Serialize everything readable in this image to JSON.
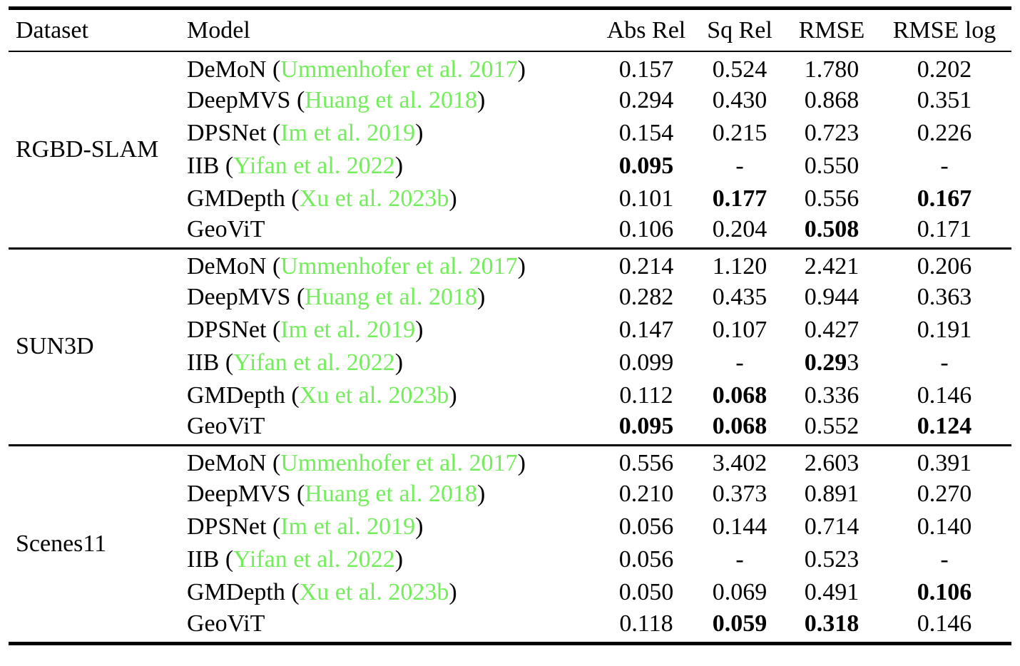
{
  "colors": {
    "citation_green": "#72ee5a",
    "text": "#000000",
    "background": "#ffffff"
  },
  "table": {
    "columns": [
      "Dataset",
      "Model",
      "Abs Rel",
      "Sq Rel",
      "RMSE",
      "RMSE log"
    ],
    "citation_prefix": " (",
    "citation_suffix": ")",
    "groups": [
      {
        "dataset": "RGBD-SLAM",
        "rows": [
          {
            "model": "DeMoN",
            "citation": "Ummenhofer et al. 2017",
            "values": [
              {
                "parts": [
                  {
                    "t": "0.157",
                    "b": false
                  }
                ]
              },
              {
                "parts": [
                  {
                    "t": "0.524",
                    "b": false
                  }
                ]
              },
              {
                "parts": [
                  {
                    "t": "1.780",
                    "b": false
                  }
                ]
              },
              {
                "parts": [
                  {
                    "t": "0.202",
                    "b": false
                  }
                ]
              }
            ]
          },
          {
            "model": "DeepMVS",
            "citation": "Huang et al. 2018",
            "values": [
              {
                "parts": [
                  {
                    "t": "0.294",
                    "b": false
                  }
                ]
              },
              {
                "parts": [
                  {
                    "t": "0.430",
                    "b": false
                  }
                ]
              },
              {
                "parts": [
                  {
                    "t": "0.868",
                    "b": false
                  }
                ]
              },
              {
                "parts": [
                  {
                    "t": "0.351",
                    "b": false
                  }
                ]
              }
            ]
          },
          {
            "model": "DPSNet",
            "citation": "Im et al. 2019",
            "values": [
              {
                "parts": [
                  {
                    "t": "0.154",
                    "b": false
                  }
                ]
              },
              {
                "parts": [
                  {
                    "t": "0.215",
                    "b": false
                  }
                ]
              },
              {
                "parts": [
                  {
                    "t": "0.723",
                    "b": false
                  }
                ]
              },
              {
                "parts": [
                  {
                    "t": "0.226",
                    "b": false
                  }
                ]
              }
            ]
          },
          {
            "model": "IIB",
            "citation": "Yifan et al. 2022",
            "values": [
              {
                "parts": [
                  {
                    "t": "0.095",
                    "b": true
                  }
                ]
              },
              {
                "parts": [
                  {
                    "t": "-",
                    "b": false
                  }
                ]
              },
              {
                "parts": [
                  {
                    "t": "0.550",
                    "b": false
                  }
                ]
              },
              {
                "parts": [
                  {
                    "t": "-",
                    "b": false
                  }
                ]
              }
            ]
          },
          {
            "model": "GMDepth",
            "citation": "Xu et al. 2023b",
            "values": [
              {
                "parts": [
                  {
                    "t": "0.101",
                    "b": false
                  }
                ]
              },
              {
                "parts": [
                  {
                    "t": "0.177",
                    "b": true
                  }
                ]
              },
              {
                "parts": [
                  {
                    "t": "0.556",
                    "b": false
                  }
                ]
              },
              {
                "parts": [
                  {
                    "t": "0.167",
                    "b": true
                  }
                ]
              }
            ]
          },
          {
            "model": "GeoViT",
            "citation": null,
            "values": [
              {
                "parts": [
                  {
                    "t": "0.106",
                    "b": false
                  }
                ]
              },
              {
                "parts": [
                  {
                    "t": "0.204",
                    "b": false
                  }
                ]
              },
              {
                "parts": [
                  {
                    "t": "0.508",
                    "b": true
                  }
                ]
              },
              {
                "parts": [
                  {
                    "t": "0.171",
                    "b": false
                  }
                ]
              }
            ]
          }
        ]
      },
      {
        "dataset": "SUN3D",
        "rows": [
          {
            "model": "DeMoN",
            "citation": "Ummenhofer et al. 2017",
            "values": [
              {
                "parts": [
                  {
                    "t": "0.214",
                    "b": false
                  }
                ]
              },
              {
                "parts": [
                  {
                    "t": "1.120",
                    "b": false
                  }
                ]
              },
              {
                "parts": [
                  {
                    "t": "2.421",
                    "b": false
                  }
                ]
              },
              {
                "parts": [
                  {
                    "t": "0.206",
                    "b": false
                  }
                ]
              }
            ]
          },
          {
            "model": "DeepMVS",
            "citation": "Huang et al. 2018",
            "values": [
              {
                "parts": [
                  {
                    "t": "0.282",
                    "b": false
                  }
                ]
              },
              {
                "parts": [
                  {
                    "t": "0.435",
                    "b": false
                  }
                ]
              },
              {
                "parts": [
                  {
                    "t": "0.944",
                    "b": false
                  }
                ]
              },
              {
                "parts": [
                  {
                    "t": "0.363",
                    "b": false
                  }
                ]
              }
            ]
          },
          {
            "model": "DPSNet",
            "citation": "Im et al. 2019",
            "values": [
              {
                "parts": [
                  {
                    "t": "0.147",
                    "b": false
                  }
                ]
              },
              {
                "parts": [
                  {
                    "t": "0.107",
                    "b": false
                  }
                ]
              },
              {
                "parts": [
                  {
                    "t": "0.427",
                    "b": false
                  }
                ]
              },
              {
                "parts": [
                  {
                    "t": "0.191",
                    "b": false
                  }
                ]
              }
            ]
          },
          {
            "model": "IIB",
            "citation": "Yifan et al. 2022",
            "values": [
              {
                "parts": [
                  {
                    "t": "0.099",
                    "b": false
                  }
                ]
              },
              {
                "parts": [
                  {
                    "t": "-",
                    "b": false
                  }
                ]
              },
              {
                "parts": [
                  {
                    "t": "0.29",
                    "b": true
                  },
                  {
                    "t": "3",
                    "b": false
                  }
                ]
              },
              {
                "parts": [
                  {
                    "t": "-",
                    "b": false
                  }
                ]
              }
            ]
          },
          {
            "model": "GMDepth",
            "citation": "Xu et al. 2023b",
            "values": [
              {
                "parts": [
                  {
                    "t": "0.112",
                    "b": false
                  }
                ]
              },
              {
                "parts": [
                  {
                    "t": "0.068",
                    "b": true
                  }
                ]
              },
              {
                "parts": [
                  {
                    "t": "0.336",
                    "b": false
                  }
                ]
              },
              {
                "parts": [
                  {
                    "t": "0.146",
                    "b": false
                  }
                ]
              }
            ]
          },
          {
            "model": "GeoViT",
            "citation": null,
            "values": [
              {
                "parts": [
                  {
                    "t": "0.095",
                    "b": true
                  }
                ]
              },
              {
                "parts": [
                  {
                    "t": "0.068",
                    "b": true
                  }
                ]
              },
              {
                "parts": [
                  {
                    "t": "0.552",
                    "b": false
                  }
                ]
              },
              {
                "parts": [
                  {
                    "t": "0.124",
                    "b": true
                  }
                ]
              }
            ]
          }
        ]
      },
      {
        "dataset": "Scenes11",
        "rows": [
          {
            "model": "DeMoN",
            "citation": "Ummenhofer et al. 2017",
            "values": [
              {
                "parts": [
                  {
                    "t": "0.556",
                    "b": false
                  }
                ]
              },
              {
                "parts": [
                  {
                    "t": "3.402",
                    "b": false
                  }
                ]
              },
              {
                "parts": [
                  {
                    "t": "2.603",
                    "b": false
                  }
                ]
              },
              {
                "parts": [
                  {
                    "t": "0.391",
                    "b": false
                  }
                ]
              }
            ]
          },
          {
            "model": "DeepMVS",
            "citation": "Huang et al. 2018",
            "values": [
              {
                "parts": [
                  {
                    "t": "0.210",
                    "b": false
                  }
                ]
              },
              {
                "parts": [
                  {
                    "t": "0.373",
                    "b": false
                  }
                ]
              },
              {
                "parts": [
                  {
                    "t": "0.891",
                    "b": false
                  }
                ]
              },
              {
                "parts": [
                  {
                    "t": "0.270",
                    "b": false
                  }
                ]
              }
            ]
          },
          {
            "model": "DPSNet",
            "citation": "Im et al. 2019",
            "values": [
              {
                "parts": [
                  {
                    "t": "0.056",
                    "b": false
                  }
                ]
              },
              {
                "parts": [
                  {
                    "t": "0.144",
                    "b": false
                  }
                ]
              },
              {
                "parts": [
                  {
                    "t": "0.714",
                    "b": false
                  }
                ]
              },
              {
                "parts": [
                  {
                    "t": "0.140",
                    "b": false
                  }
                ]
              }
            ]
          },
          {
            "model": "IIB",
            "citation": "Yifan et al. 2022",
            "values": [
              {
                "parts": [
                  {
                    "t": "0.056",
                    "b": false
                  }
                ]
              },
              {
                "parts": [
                  {
                    "t": "-",
                    "b": false
                  }
                ]
              },
              {
                "parts": [
                  {
                    "t": "0.523",
                    "b": false
                  }
                ]
              },
              {
                "parts": [
                  {
                    "t": "-",
                    "b": false
                  }
                ]
              }
            ]
          },
          {
            "model": "GMDepth",
            "citation": "Xu et al. 2023b",
            "values": [
              {
                "parts": [
                  {
                    "t": "0.050",
                    "b": false
                  }
                ]
              },
              {
                "parts": [
                  {
                    "t": "0.069",
                    "b": false
                  }
                ]
              },
              {
                "parts": [
                  {
                    "t": "0.491",
                    "b": false
                  }
                ]
              },
              {
                "parts": [
                  {
                    "t": "0.106",
                    "b": true
                  }
                ]
              }
            ]
          },
          {
            "model": "GeoViT",
            "citation": null,
            "values": [
              {
                "parts": [
                  {
                    "t": "0.118",
                    "b": false
                  }
                ]
              },
              {
                "parts": [
                  {
                    "t": "0.059",
                    "b": true
                  }
                ]
              },
              {
                "parts": [
                  {
                    "t": "0.318",
                    "b": true
                  }
                ]
              },
              {
                "parts": [
                  {
                    "t": "0.146",
                    "b": false
                  }
                ]
              }
            ]
          }
        ]
      }
    ]
  }
}
